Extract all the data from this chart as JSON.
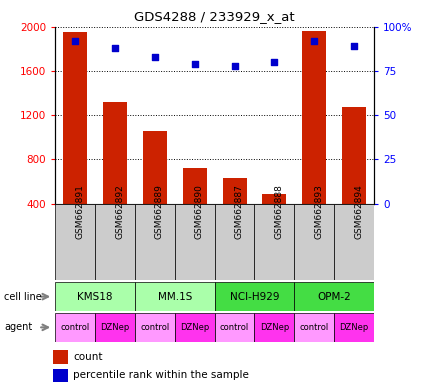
{
  "title": "GDS4288 / 233929_x_at",
  "samples": [
    "GSM662891",
    "GSM662892",
    "GSM662889",
    "GSM662890",
    "GSM662887",
    "GSM662888",
    "GSM662893",
    "GSM662894"
  ],
  "counts": [
    1950,
    1320,
    1060,
    720,
    630,
    490,
    1960,
    1270
  ],
  "percentile_ranks": [
    92,
    88,
    83,
    79,
    78,
    80,
    92,
    89
  ],
  "cell_lines": [
    {
      "label": "KMS18",
      "span": [
        0,
        2
      ],
      "color": "#AAFFAA"
    },
    {
      "label": "MM.1S",
      "span": [
        2,
        4
      ],
      "color": "#AAFFAA"
    },
    {
      "label": "NCI-H929",
      "span": [
        4,
        6
      ],
      "color": "#44DD44"
    },
    {
      "label": "OPM-2",
      "span": [
        6,
        8
      ],
      "color": "#44DD44"
    }
  ],
  "agents": [
    "control",
    "DZNep",
    "control",
    "DZNep",
    "control",
    "DZNep",
    "control",
    "DZNep"
  ],
  "agent_color_control": "#FF99FF",
  "agent_color_dznep": "#FF33EE",
  "bar_color": "#CC2200",
  "dot_color": "#0000CC",
  "ylim_left": [
    400,
    2000
  ],
  "ylim_right": [
    0,
    100
  ],
  "yticks_left": [
    400,
    800,
    1200,
    1600,
    2000
  ],
  "yticks_right": [
    0,
    25,
    50,
    75,
    100
  ],
  "ytick_right_labels": [
    "0",
    "25",
    "50",
    "75",
    "100%"
  ]
}
